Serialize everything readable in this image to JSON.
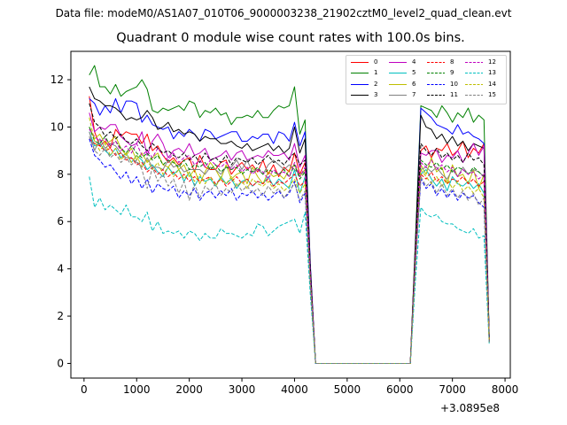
{
  "figure": {
    "suptitle": "Data file: modeM0/AS1A07_010T06_9000003238_21902cztM0_level2_quad_clean.evt"
  },
  "chart_data": {
    "type": "line",
    "title": "Quadrant 0 module wise count rates with 100.0s bins.",
    "xlabel": "",
    "ylabel": "",
    "x_offset_label": "+3.0895e8",
    "xlim": [
      -250,
      8100
    ],
    "ylim": [
      -0.62,
      13.2
    ],
    "xticks": [
      0,
      1000,
      2000,
      3000,
      4000,
      5000,
      6000,
      7000,
      8000
    ],
    "xtick_labels": [
      "0",
      "1000",
      "2000",
      "3000",
      "4000",
      "5000",
      "6000",
      "7000",
      "8000"
    ],
    "yticks": [
      0,
      2,
      4,
      6,
      8,
      10,
      12
    ],
    "ytick_labels": [
      "0",
      "2",
      "4",
      "6",
      "8",
      "10",
      "12"
    ],
    "legend_position": "upper right",
    "legend_columns": 4,
    "x": [
      100,
      200,
      300,
      400,
      500,
      600,
      700,
      800,
      900,
      1000,
      1100,
      1200,
      1300,
      1400,
      1500,
      1600,
      1700,
      1800,
      1900,
      2000,
      2100,
      2200,
      2300,
      2400,
      2500,
      2600,
      2700,
      2800,
      2900,
      3000,
      3100,
      3200,
      3300,
      3400,
      3500,
      3600,
      3700,
      3800,
      3900,
      4000,
      4100,
      4200,
      4300,
      4400,
      6200,
      6300,
      6400,
      6500,
      6600,
      6700,
      6800,
      6900,
      7000,
      7100,
      7200,
      7300,
      7400,
      7500,
      7600,
      7700
    ],
    "series": [
      {
        "name": "0",
        "color": "#ff0000",
        "dash": "solid",
        "values": [
          11.3,
          9.8,
          9.2,
          9.4,
          9.1,
          9.9,
          9.6,
          9.8,
          9.7,
          9.7,
          9.3,
          9.7,
          9.0,
          9.2,
          8.8,
          8.5,
          8.7,
          8.4,
          8.6,
          8.7,
          8.1,
          8.8,
          8.3,
          8.2,
          8.2,
          8.5,
          8.6,
          8.0,
          8.3,
          8.5,
          8.2,
          8.4,
          8.1,
          8.6,
          8.0,
          8.4,
          7.9,
          8.3,
          8.1,
          8.9,
          8.0,
          8.5,
          3.8,
          0.0,
          0.0,
          5.0,
          9.0,
          9.2,
          8.7,
          9.1,
          9.0,
          9.3,
          8.8,
          9.0,
          9.4,
          8.7,
          9.1,
          8.9,
          9.3,
          1.0
        ]
      },
      {
        "name": "1",
        "color": "#008000",
        "dash": "solid",
        "values": [
          12.2,
          12.6,
          11.7,
          11.7,
          11.4,
          11.8,
          11.3,
          11.5,
          11.6,
          11.7,
          12.0,
          11.6,
          10.7,
          10.6,
          10.8,
          10.7,
          10.8,
          10.9,
          10.7,
          11.1,
          11.0,
          10.4,
          10.7,
          10.6,
          10.8,
          10.5,
          10.6,
          10.1,
          10.4,
          10.4,
          10.5,
          10.4,
          10.7,
          10.4,
          10.4,
          10.7,
          10.9,
          10.8,
          10.9,
          11.7,
          9.7,
          10.3,
          4.0,
          0.0,
          0.0,
          5.4,
          10.9,
          10.8,
          10.7,
          10.4,
          10.9,
          10.6,
          10.2,
          10.6,
          10.4,
          10.8,
          10.2,
          10.5,
          10.3,
          1.1
        ]
      },
      {
        "name": "2",
        "color": "#0000ff",
        "dash": "solid",
        "values": [
          11.2,
          11.0,
          10.5,
          10.9,
          10.6,
          11.2,
          10.6,
          11.1,
          11.1,
          11.0,
          10.2,
          10.5,
          10.1,
          10.0,
          9.9,
          10.0,
          9.5,
          9.8,
          9.6,
          9.9,
          9.7,
          9.4,
          9.9,
          9.8,
          9.5,
          9.6,
          9.7,
          9.8,
          9.8,
          9.4,
          9.4,
          9.6,
          9.5,
          9.7,
          9.7,
          9.3,
          9.8,
          9.7,
          9.4,
          10.2,
          9.2,
          9.8,
          4.2,
          0.0,
          0.0,
          5.1,
          10.8,
          10.6,
          10.4,
          10.1,
          10.0,
          9.9,
          9.7,
          10.1,
          9.7,
          9.8,
          9.6,
          9.5,
          9.3,
          1.1
        ]
      },
      {
        "name": "3",
        "color": "#000000",
        "dash": "solid",
        "values": [
          11.7,
          11.2,
          11.1,
          10.9,
          10.9,
          10.8,
          10.6,
          10.3,
          10.4,
          10.3,
          10.4,
          10.7,
          10.4,
          9.9,
          10.0,
          10.2,
          9.8,
          9.9,
          9.7,
          9.8,
          9.7,
          9.4,
          9.6,
          9.5,
          9.5,
          9.3,
          9.3,
          9.4,
          9.2,
          9.1,
          9.3,
          9.0,
          9.1,
          9.2,
          9.3,
          9.0,
          9.2,
          8.9,
          9.1,
          10.0,
          8.9,
          9.5,
          4.1,
          0.0,
          0.0,
          5.2,
          10.5,
          10.0,
          9.9,
          9.5,
          9.7,
          9.3,
          9.6,
          9.2,
          9.4,
          9.0,
          9.3,
          9.2,
          9.1,
          1.1
        ]
      },
      {
        "name": "4",
        "color": "#bf00bf",
        "dash": "solid",
        "values": [
          10.6,
          9.8,
          10.0,
          9.9,
          10.1,
          10.1,
          9.6,
          9.4,
          9.2,
          9.3,
          9.8,
          8.8,
          9.4,
          9.7,
          9.3,
          8.7,
          9.0,
          9.1,
          8.9,
          9.3,
          8.8,
          8.9,
          9.1,
          8.6,
          8.7,
          8.8,
          9.0,
          8.6,
          8.9,
          9.0,
          8.6,
          8.7,
          8.8,
          8.7,
          9.0,
          8.8,
          8.8,
          8.9,
          8.6,
          9.3,
          8.3,
          8.8,
          3.8,
          0.0,
          0.0,
          4.9,
          8.9,
          8.8,
          9.0,
          9.0,
          8.5,
          8.8,
          8.7,
          9.0,
          8.5,
          8.9,
          9.3,
          8.8,
          9.2,
          1.0
        ]
      },
      {
        "name": "5",
        "color": "#00bfbf",
        "dash": "solid",
        "values": [
          9.8,
          9.2,
          9.3,
          9.0,
          8.8,
          9.1,
          8.7,
          8.9,
          8.5,
          8.8,
          8.6,
          8.2,
          8.4,
          8.1,
          7.9,
          8.3,
          8.0,
          8.2,
          7.7,
          8.1,
          7.5,
          7.9,
          7.7,
          7.8,
          7.5,
          7.9,
          7.6,
          7.8,
          7.4,
          7.7,
          7.8,
          7.5,
          7.7,
          7.6,
          7.9,
          7.5,
          7.8,
          7.6,
          7.4,
          8.2,
          7.2,
          7.9,
          3.5,
          0.0,
          0.0,
          4.4,
          8.0,
          8.2,
          7.8,
          7.5,
          7.8,
          7.3,
          7.9,
          7.6,
          7.5,
          7.7,
          7.4,
          7.6,
          7.2,
          0.9
        ]
      },
      {
        "name": "6",
        "color": "#bfbf00",
        "dash": "solid",
        "values": [
          10.0,
          9.5,
          9.7,
          9.3,
          9.4,
          9.6,
          9.1,
          8.8,
          9.1,
          8.6,
          8.9,
          8.5,
          8.7,
          8.9,
          8.4,
          8.3,
          8.6,
          8.2,
          8.4,
          7.9,
          8.2,
          7.6,
          8.1,
          8.5,
          8.2,
          7.8,
          8.4,
          7.8,
          8.0,
          8.1,
          7.6,
          8.3,
          7.9,
          7.6,
          8.1,
          7.9,
          8.0,
          7.8,
          8.2,
          8.4,
          7.9,
          8.2,
          3.7,
          0.0,
          0.0,
          4.6,
          8.4,
          8.0,
          8.7,
          8.1,
          8.3,
          7.6,
          8.4,
          7.9,
          8.0,
          7.6,
          8.2,
          7.4,
          8.0,
          0.9
        ]
      },
      {
        "name": "7",
        "color": "#808080",
        "dash": "solid",
        "values": [
          9.8,
          9.0,
          9.5,
          9.1,
          9.3,
          9.2,
          8.9,
          8.7,
          8.7,
          8.5,
          8.3,
          8.7,
          8.3,
          8.3,
          8.2,
          8.6,
          8.3,
          8.4,
          8.1,
          8.2,
          8.2,
          8.2,
          8.0,
          8.3,
          8.2,
          8.0,
          8.3,
          8.3,
          8.6,
          8.2,
          8.6,
          8.1,
          8.2,
          8.0,
          8.4,
          8.6,
          8.4,
          8.2,
          8.4,
          8.2,
          8.0,
          8.1,
          3.6,
          0.0,
          0.0,
          4.5,
          8.2,
          8.3,
          8.1,
          8.3,
          8.0,
          7.8,
          8.2,
          7.9,
          8.3,
          8.0,
          8.2,
          8.1,
          7.9,
          0.9
        ]
      },
      {
        "name": "8",
        "color": "#ff0000",
        "dash": "dashed",
        "values": [
          9.5,
          9.3,
          9.2,
          9.0,
          9.1,
          8.8,
          8.9,
          8.6,
          8.7,
          8.4,
          8.5,
          8.1,
          8.3,
          8.0,
          8.2,
          7.9,
          8.1,
          7.8,
          8.0,
          7.7,
          7.9,
          7.7,
          7.8,
          7.9,
          7.6,
          7.8,
          7.5,
          7.7,
          7.9,
          7.6,
          7.8,
          7.5,
          7.7,
          7.6,
          7.8,
          7.5,
          7.7,
          7.6,
          7.8,
          8.0,
          7.5,
          7.7,
          3.5,
          0.0,
          0.0,
          4.4,
          8.0,
          7.8,
          8.1,
          7.7,
          7.9,
          7.6,
          7.8,
          7.7,
          7.9,
          7.6,
          7.8,
          7.5,
          7.7,
          0.9
        ]
      },
      {
        "name": "9",
        "color": "#008000",
        "dash": "dashed",
        "values": [
          10.0,
          9.4,
          9.3,
          9.6,
          9.2,
          9.4,
          9.1,
          8.9,
          9.2,
          8.9,
          8.7,
          8.9,
          8.6,
          8.8,
          8.4,
          8.6,
          8.5,
          8.3,
          8.6,
          8.2,
          8.4,
          8.3,
          8.5,
          8.2,
          8.4,
          8.1,
          8.3,
          8.2,
          8.3,
          8.0,
          8.2,
          8.1,
          8.3,
          8.0,
          8.2,
          8.1,
          8.0,
          8.2,
          7.9,
          8.4,
          7.8,
          8.1,
          3.7,
          0.0,
          0.0,
          4.6,
          8.6,
          8.4,
          8.3,
          8.5,
          8.2,
          8.4,
          8.1,
          8.3,
          8.2,
          8.0,
          8.3,
          8.1,
          7.9,
          0.9
        ]
      },
      {
        "name": "10",
        "color": "#0000ff",
        "dash": "dashed",
        "values": [
          9.5,
          8.8,
          8.6,
          8.3,
          8.4,
          8.1,
          7.8,
          8.1,
          7.6,
          7.9,
          7.4,
          7.8,
          7.2,
          7.6,
          7.4,
          7.3,
          7.5,
          7.0,
          7.3,
          7.1,
          7.4,
          6.9,
          7.2,
          7.3,
          7.0,
          7.3,
          7.1,
          7.4,
          6.9,
          7.2,
          7.1,
          7.3,
          7.0,
          7.2,
          6.9,
          7.1,
          7.3,
          7.0,
          7.2,
          7.7,
          6.8,
          7.2,
          3.3,
          0.0,
          0.0,
          4.2,
          7.8,
          7.4,
          7.6,
          7.1,
          7.4,
          7.0,
          7.3,
          6.9,
          7.2,
          7.0,
          7.1,
          6.8,
          6.6,
          0.9
        ]
      },
      {
        "name": "11",
        "color": "#000000",
        "dash": "dashed",
        "values": [
          11.0,
          10.2,
          10.0,
          9.6,
          9.8,
          9.5,
          9.7,
          9.4,
          9.3,
          9.5,
          9.2,
          9.0,
          9.3,
          9.1,
          8.9,
          9.0,
          8.8,
          8.7,
          8.9,
          8.6,
          8.8,
          8.5,
          8.9,
          8.6,
          8.7,
          8.5,
          8.8,
          8.4,
          8.7,
          8.6,
          8.5,
          8.7,
          8.4,
          8.6,
          8.8,
          8.5,
          8.6,
          8.4,
          8.7,
          8.9,
          8.4,
          8.6,
          3.9,
          0.0,
          0.0,
          4.8,
          9.3,
          9.0,
          8.8,
          9.1,
          8.7,
          8.9,
          8.6,
          8.8,
          8.5,
          8.9,
          8.6,
          8.7,
          8.4,
          1.0
        ]
      },
      {
        "name": "12",
        "color": "#bf00bf",
        "dash": "dashed",
        "values": [
          9.9,
          9.6,
          9.4,
          9.5,
          9.2,
          9.4,
          9.0,
          9.2,
          8.9,
          9.3,
          8.8,
          9.0,
          8.7,
          9.1,
          8.8,
          8.6,
          8.9,
          8.5,
          8.7,
          8.8,
          8.4,
          8.6,
          8.3,
          8.6,
          8.4,
          8.3,
          8.5,
          8.2,
          8.4,
          8.1,
          8.3,
          8.0,
          8.2,
          8.1,
          7.8,
          8.2,
          8.0,
          8.1,
          7.9,
          8.5,
          7.9,
          8.3,
          3.7,
          0.0,
          0.0,
          4.5,
          8.5,
          8.3,
          8.6,
          8.2,
          8.4,
          8.1,
          8.3,
          7.9,
          8.2,
          8.0,
          8.1,
          7.8,
          8.0,
          0.9
        ]
      },
      {
        "name": "13",
        "color": "#00bfbf",
        "dash": "dashed",
        "values": [
          7.9,
          6.6,
          7.0,
          6.5,
          6.7,
          6.5,
          6.3,
          6.7,
          6.2,
          6.2,
          6.0,
          6.4,
          5.6,
          6.0,
          5.5,
          5.6,
          5.5,
          5.6,
          5.3,
          5.6,
          5.5,
          5.2,
          5.5,
          5.3,
          5.3,
          5.7,
          5.5,
          5.5,
          5.4,
          5.3,
          5.5,
          5.4,
          5.9,
          5.8,
          5.4,
          5.6,
          5.8,
          5.9,
          6.0,
          6.1,
          5.5,
          6.4,
          2.9,
          0.0,
          0.0,
          3.6,
          6.6,
          6.3,
          6.2,
          6.3,
          6.0,
          5.9,
          5.9,
          5.7,
          5.6,
          5.5,
          5.7,
          5.3,
          5.4,
          0.8
        ]
      },
      {
        "name": "14",
        "color": "#bfbf00",
        "dash": "dashed",
        "values": [
          10.4,
          9.4,
          9.0,
          9.3,
          8.8,
          9.1,
          8.6,
          8.9,
          8.5,
          8.8,
          8.3,
          8.6,
          8.2,
          8.5,
          8.0,
          8.3,
          7.9,
          8.2,
          7.8,
          8.1,
          7.7,
          8.0,
          7.6,
          7.9,
          7.5,
          7.8,
          7.6,
          7.9,
          7.5,
          7.7,
          7.4,
          7.8,
          7.6,
          7.5,
          7.7,
          7.4,
          7.6,
          7.3,
          7.5,
          7.8,
          7.2,
          7.6,
          3.4,
          0.0,
          0.0,
          4.3,
          8.2,
          7.9,
          7.6,
          7.9,
          7.5,
          7.8,
          7.4,
          7.7,
          7.3,
          7.5,
          7.2,
          7.4,
          7.0,
          0.9
        ]
      },
      {
        "name": "15",
        "color": "#808080",
        "dash": "dashed",
        "values": [
          9.6,
          9.0,
          8.8,
          9.1,
          8.7,
          8.9,
          8.5,
          8.7,
          8.4,
          8.6,
          8.2,
          7.4,
          8.3,
          7.7,
          8.0,
          7.5,
          7.8,
          7.2,
          7.7,
          6.9,
          7.6,
          7.0,
          7.5,
          7.3,
          7.6,
          7.1,
          7.4,
          7.2,
          7.6,
          7.3,
          7.5,
          7.2,
          7.4,
          7.1,
          7.5,
          7.2,
          7.4,
          7.0,
          7.3,
          7.6,
          6.9,
          7.3,
          3.3,
          0.0,
          0.0,
          4.2,
          7.9,
          7.5,
          7.7,
          7.2,
          7.6,
          7.1,
          7.4,
          7.0,
          7.3,
          6.9,
          7.2,
          6.7,
          7.0,
          0.9
        ]
      }
    ]
  }
}
